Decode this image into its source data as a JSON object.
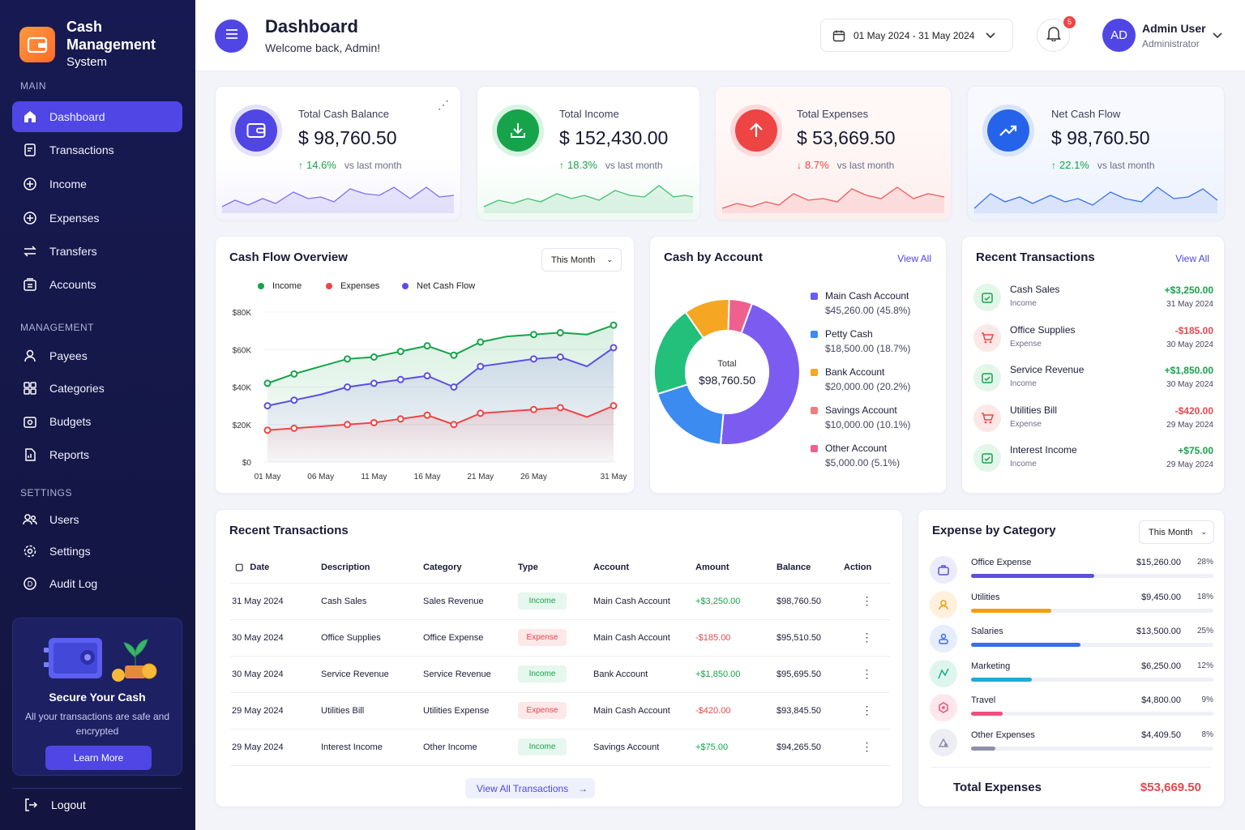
{
  "brand": {
    "title": "Cash Management",
    "subtitle": "System"
  },
  "sidebar": {
    "sections": {
      "main": "MAIN",
      "management": "MANAGEMENT",
      "settings": "SETTINGS"
    },
    "items": [
      {
        "label": "Dashboard",
        "icon": "home-icon"
      },
      {
        "label": "Transactions",
        "icon": "transactions-icon"
      },
      {
        "label": "Income",
        "icon": "plus-circle-icon"
      },
      {
        "label": "Expenses",
        "icon": "plus-circle-icon"
      },
      {
        "label": "Transfers",
        "icon": "swap-icon"
      },
      {
        "label": "Accounts",
        "icon": "wallet-icon"
      },
      {
        "label": "Payees",
        "icon": "user-icon"
      },
      {
        "label": "Categories",
        "icon": "grid-icon"
      },
      {
        "label": "Budgets",
        "icon": "budget-icon"
      },
      {
        "label": "Reports",
        "icon": "report-icon"
      },
      {
        "label": "Users",
        "icon": "users-icon"
      },
      {
        "label": "Settings",
        "icon": "gear-icon"
      },
      {
        "label": "Audit Log",
        "icon": "audit-icon"
      }
    ],
    "promo": {
      "title": "Secure Your Cash",
      "text": "All your transactions are safe and encrypted",
      "button": "Learn More"
    },
    "logout": "Logout"
  },
  "header": {
    "title": "Dashboard",
    "subtitle": "Welcome back, Admin!",
    "date_range": "01 May 2024 - 31 May 2024",
    "notifications": "5",
    "avatar": "AD",
    "user_name": "Admin User",
    "user_role": "Administrator"
  },
  "stats": [
    {
      "label": "Total Cash Balance",
      "value": "$ 98,760.50",
      "change": "14.6%",
      "direction": "up",
      "vs": "vs last month",
      "color": "#4f46e5"
    },
    {
      "label": "Total Income",
      "value": "$ 152,430.00",
      "change": "18.3%",
      "direction": "up",
      "vs": "vs last month",
      "color": "#16a34a"
    },
    {
      "label": "Total Expenses",
      "value": "$ 53,669.50",
      "change": "8.7%",
      "direction": "down",
      "vs": "vs last month",
      "color": "#ef4444"
    },
    {
      "label": "Net Cash Flow",
      "value": "$ 98,760.50",
      "change": "22.1%",
      "direction": "up",
      "vs": "vs last month",
      "color": "#2563eb"
    }
  ],
  "cashflow": {
    "title": "Cash Flow Overview",
    "filter": "This Month"
  },
  "chart_data": [
    {
      "type": "line",
      "x": [
        "01 May",
        "03 May",
        "06 May",
        "09 May",
        "11 May",
        "14 May",
        "16 May",
        "18 May",
        "21 May",
        "24 May",
        "26 May",
        "28 May",
        "29 May",
        "31 May"
      ],
      "xticks": [
        "01 May",
        "06 May",
        "11 May",
        "16 May",
        "21 May",
        "26 May",
        "31 May"
      ],
      "series": [
        {
          "name": "Income",
          "color": "#16a34a",
          "values": [
            42,
            47,
            51,
            55,
            56,
            59,
            62,
            57,
            64,
            67,
            68,
            69,
            68,
            73
          ]
        },
        {
          "name": "Expenses",
          "color": "#ef4444",
          "values": [
            17,
            18,
            19,
            20,
            21,
            23,
            25,
            20,
            26,
            27,
            28,
            29,
            24,
            30
          ]
        },
        {
          "name": "Net Cash Flow",
          "color": "#5b4fe0",
          "values": [
            30,
            33,
            36,
            40,
            42,
            44,
            46,
            40,
            51,
            53,
            55,
            56,
            51,
            61
          ]
        }
      ],
      "yticks": [
        "$80K",
        "$60K",
        "$40K",
        "$20K",
        "$0"
      ],
      "ylim": [
        0,
        80
      ],
      "legend": "top-left"
    },
    {
      "type": "pie",
      "categories": [
        "Main Cash Account",
        "Petty Cash",
        "Bank Account",
        "Savings Account",
        "Other Account"
      ],
      "values": [
        45.8,
        18.7,
        20.2,
        10.1,
        5.1
      ],
      "colors": [
        "#7c5cf0",
        "#3b8bf0",
        "#22c07a",
        "#f5a623",
        "#f0608e"
      ],
      "center_label": "Total",
      "center_value": "$98,760.50"
    }
  ],
  "cash_by_account": {
    "title": "Cash by Account",
    "view_all": "View All",
    "accounts": [
      {
        "name": "Main Cash Account",
        "value": "$45,260.00 (45.8%)",
        "color": "#6d5cf0"
      },
      {
        "name": "Petty Cash",
        "value": "$18,500.00 (18.7%)",
        "color": "#3b8bf0"
      },
      {
        "name": "Bank Account",
        "value": "$20,000.00 (20.2%)",
        "color": "#f5a623"
      },
      {
        "name": "Savings Account",
        "value": "$10,000.00 (10.1%)",
        "color": "#f07c7c"
      },
      {
        "name": "Other Account",
        "value": "$5,000.00 (5.1%)",
        "color": "#f0608e"
      }
    ]
  },
  "recent_side": {
    "title": "Recent Transactions",
    "view_all": "View All",
    "items": [
      {
        "name": "Cash Sales",
        "type": "Income",
        "amount": "+$3,250.00",
        "date": "31 May 2024",
        "kind": "in"
      },
      {
        "name": "Office Supplies",
        "type": "Expense",
        "amount": "-$185.00",
        "date": "30 May 2024",
        "kind": "ex"
      },
      {
        "name": "Service Revenue",
        "type": "Income",
        "amount": "+$1,850.00",
        "date": "30 May 2024",
        "kind": "in"
      },
      {
        "name": "Utilities Bill",
        "type": "Expense",
        "amount": "-$420.00",
        "date": "29 May 2024",
        "kind": "ex"
      },
      {
        "name": "Interest Income",
        "type": "Income",
        "amount": "+$75.00",
        "date": "29 May 2024",
        "kind": "in"
      }
    ]
  },
  "table": {
    "title": "Recent Transactions",
    "headers": [
      "Date",
      "Description",
      "Category",
      "Type",
      "Account",
      "Amount",
      "Balance",
      "Action"
    ],
    "rows": [
      {
        "date": "31 May 2024",
        "desc": "Cash Sales",
        "cat": "Sales Revenue",
        "type": "Income",
        "kind": "in",
        "acct": "Main Cash Account",
        "amt": "+$3,250.00",
        "bal": "$98,760.50"
      },
      {
        "date": "30 May 2024",
        "desc": "Office Supplies",
        "cat": "Office Expense",
        "type": "Expense",
        "kind": "ex",
        "acct": "Main Cash Account",
        "amt": "-$185.00",
        "bal": "$95,510.50"
      },
      {
        "date": "30 May 2024",
        "desc": "Service Revenue",
        "cat": "Service Revenue",
        "type": "Income",
        "kind": "in",
        "acct": "Bank Account",
        "amt": "+$1,850.00",
        "bal": "$95,695.50"
      },
      {
        "date": "29 May 2024",
        "desc": "Utilities Bill",
        "cat": "Utilities Expense",
        "type": "Expense",
        "kind": "ex",
        "acct": "Main Cash Account",
        "amt": "-$420.00",
        "bal": "$93,845.50"
      },
      {
        "date": "29 May 2024",
        "desc": "Interest Income",
        "cat": "Other Income",
        "type": "Income",
        "kind": "in",
        "acct": "Savings Account",
        "amt": "+$75.00",
        "bal": "$94,265.50"
      }
    ],
    "view_all": "View All Transactions"
  },
  "expense_cat": {
    "title": "Expense by Category",
    "filter": "This Month",
    "items": [
      {
        "name": "Office Expense",
        "amount": "$15,260.00",
        "pct": "28%",
        "fraction": 0.51,
        "color": "#5b4fe0",
        "bg": "#ecebfd",
        "icon": "briefcase-icon"
      },
      {
        "name": "Utilities",
        "amount": "$9,450.00",
        "pct": "18%",
        "fraction": 0.33,
        "color": "#f59e0b",
        "bg": "#fff1dd",
        "icon": "user-icon"
      },
      {
        "name": "Salaries",
        "amount": "$13,500.00",
        "pct": "25%",
        "fraction": 0.45,
        "color": "#3b6df0",
        "bg": "#e6edfd",
        "icon": "people-icon"
      },
      {
        "name": "Marketing",
        "amount": "$6,250.00",
        "pct": "12%",
        "fraction": 0.25,
        "color": "#22a8d8",
        "bg": "#def5ee",
        "icon": "chart-icon"
      },
      {
        "name": "Travel",
        "amount": "$4,800.00",
        "pct": "9%",
        "fraction": 0.13,
        "color": "#ef4f7c",
        "bg": "#fde6ec",
        "icon": "plane-icon"
      },
      {
        "name": "Other Expenses",
        "amount": "$4,409.50",
        "pct": "8%",
        "fraction": 0.1,
        "color": "#8e90a8",
        "bg": "#eceef4",
        "icon": "misc-icon"
      }
    ],
    "total_label": "Total Expenses",
    "total_value": "$53,669.50"
  }
}
